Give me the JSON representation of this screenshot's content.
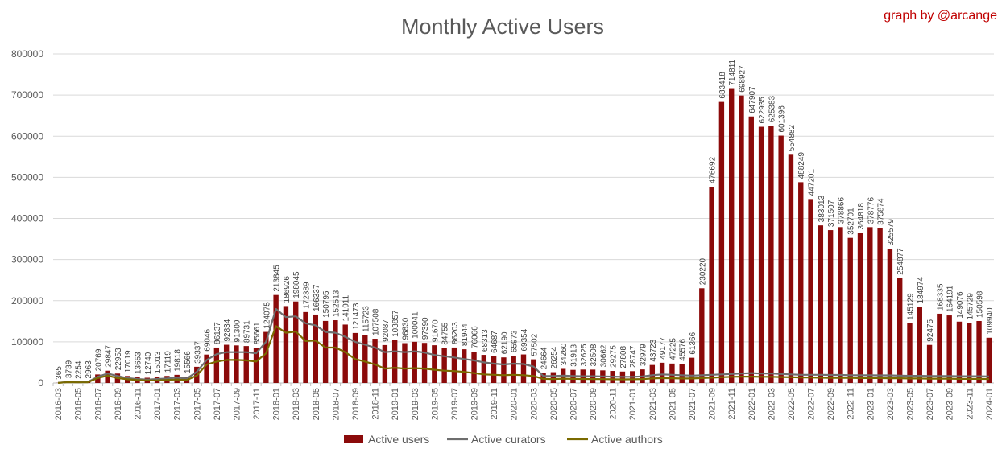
{
  "chart_data": {
    "type": "bar",
    "title": "Monthly Active Users",
    "credit": "graph by @arcange",
    "ylim": [
      0,
      800000
    ],
    "yticks": [
      "0",
      "100000",
      "200000",
      "300000",
      "400000",
      "500000",
      "600000",
      "700000",
      "800000"
    ],
    "grid": true,
    "legend_position": "bottom",
    "colors": {
      "users": "#8B0A0A",
      "curators": "#6E6E6E",
      "authors": "#7A6A00",
      "credit": "#C00000",
      "title": "#595959"
    },
    "categories": [
      "2016-03",
      "2016-04",
      "2016-05",
      "2016-06",
      "2016-07",
      "2016-08",
      "2016-09",
      "2016-10",
      "2016-11",
      "2016-12",
      "2017-01",
      "2017-02",
      "2017-03",
      "2017-04",
      "2017-05",
      "2017-06",
      "2017-07",
      "2017-08",
      "2017-09",
      "2017-10",
      "2017-11",
      "2017-12",
      "2018-01",
      "2018-02",
      "2018-03",
      "2018-04",
      "2018-05",
      "2018-06",
      "2018-07",
      "2018-08",
      "2018-09",
      "2018-10",
      "2018-11",
      "2018-12",
      "2019-01",
      "2019-02",
      "2019-03",
      "2019-04",
      "2019-05",
      "2019-06",
      "2019-07",
      "2019-08",
      "2019-09",
      "2019-10",
      "2019-11",
      "2019-12",
      "2020-01",
      "2020-02",
      "2020-03",
      "2020-04",
      "2020-05",
      "2020-06",
      "2020-07",
      "2020-08",
      "2020-09",
      "2020-10",
      "2020-11",
      "2020-12",
      "2021-01",
      "2021-02",
      "2021-03",
      "2021-04",
      "2021-05",
      "2021-06",
      "2021-07",
      "2021-08",
      "2021-09",
      "2021-10",
      "2021-11",
      "2021-12",
      "2022-01",
      "2022-02",
      "2022-03",
      "2022-04",
      "2022-05",
      "2022-06",
      "2022-07",
      "2022-08",
      "2022-09",
      "2022-10",
      "2022-11",
      "2022-12",
      "2023-01",
      "2023-02",
      "2023-03",
      "2023-04",
      "2023-05",
      "2023-06",
      "2023-07",
      "2023-08",
      "2023-09",
      "2023-10",
      "2023-11",
      "2023-12",
      "2024-01"
    ],
    "series": [
      {
        "name": "Active users",
        "kind": "bar",
        "values": [
          365,
          3739,
          2254,
          2963,
          20769,
          29847,
          22953,
          17019,
          13653,
          12740,
          15013,
          17119,
          19818,
          15566,
          39337,
          69046,
          86137,
          92834,
          91300,
          89731,
          85661,
          124075,
          213845,
          186926,
          198045,
          172389,
          166337,
          150795,
          152513,
          141911,
          121473,
          115723,
          107508,
          92087,
          103857,
          96830,
          100041,
          97390,
          91670,
          84755,
          86203,
          81944,
          76066,
          68313,
          64687,
          62190,
          65973,
          69354,
          57502,
          24664,
          26254,
          34260,
          31913,
          32625,
          32508,
          30662,
          29275,
          27808,
          28747,
          32979,
          43723,
          49177,
          47225,
          45576,
          61366,
          230220,
          476692,
          683418,
          714811,
          698927,
          647907,
          622935,
          625383,
          601396,
          554882,
          488249,
          447201,
          383013,
          371507,
          378866,
          352701,
          364818,
          378776,
          375874,
          325579,
          254877,
          145129,
          184974,
          92475,
          168335,
          164191,
          149076,
          145729,
          150598,
          109940
        ]
      },
      {
        "name": "Active curators",
        "kind": "line",
        "values": [
          300,
          2500,
          1800,
          2500,
          15000,
          23000,
          17000,
          12000,
          9500,
          8500,
          9500,
          11000,
          13000,
          11000,
          27000,
          56000,
          70000,
          75000,
          75000,
          75000,
          72000,
          100000,
          180000,
          160000,
          162000,
          145000,
          140000,
          124000,
          122000,
          112000,
          100000,
          93000,
          86000,
          75000,
          77000,
          75000,
          77000,
          74000,
          68000,
          65000,
          62000,
          58000,
          55000,
          50000,
          47000,
          45000,
          47000,
          46000,
          40000,
          17000,
          17000,
          18000,
          17000,
          16500,
          16500,
          16000,
          15500,
          15000,
          15000,
          16000,
          19000,
          21000,
          20000,
          19000,
          18000,
          19000,
          20000,
          21000,
          22000,
          23000,
          24000,
          23000,
          23000,
          22000,
          21000,
          20000,
          20000,
          20000,
          19500,
          19500,
          19000,
          19000,
          19000,
          18500,
          18500,
          18000,
          17500,
          17500,
          17000,
          17000,
          17000,
          16500,
          16500,
          16500,
          16000
        ]
      },
      {
        "name": "Active authors",
        "kind": "line",
        "values": [
          200,
          2000,
          1500,
          1800,
          12000,
          18000,
          12000,
          9000,
          7000,
          6000,
          6500,
          7500,
          8500,
          7000,
          18000,
          45000,
          52000,
          56000,
          56000,
          55000,
          52000,
          72000,
          138000,
          122000,
          125000,
          102000,
          103000,
          86000,
          86000,
          75000,
          58000,
          52000,
          45000,
          35000,
          37000,
          35000,
          36000,
          35000,
          32000,
          30000,
          29000,
          27000,
          24000,
          21000,
          20000,
          19000,
          20000,
          19000,
          17000,
          10000,
          9500,
          10500,
          10000,
          9800,
          9500,
          9300,
          9000,
          8800,
          9000,
          9500,
          11000,
          12000,
          11500,
          11000,
          11000,
          12000,
          13000,
          14000,
          15000,
          15500,
          15500,
          15000,
          15000,
          14500,
          14000,
          13500,
          13500,
          13000,
          12500,
          12500,
          12500,
          12000,
          12000,
          12000,
          11500,
          11500,
          11000,
          11000,
          10500,
          10500,
          10500,
          10000,
          10000,
          10000,
          9800
        ]
      }
    ]
  }
}
